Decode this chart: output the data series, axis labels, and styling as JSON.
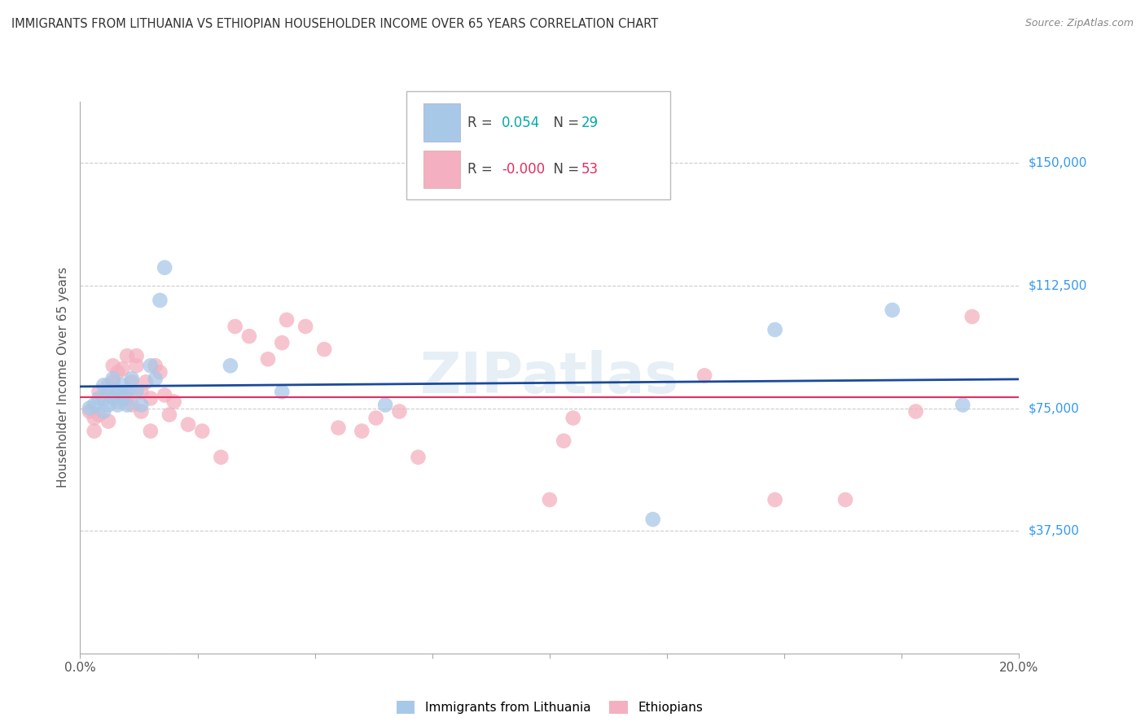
{
  "title": "IMMIGRANTS FROM LITHUANIA VS ETHIOPIAN HOUSEHOLDER INCOME OVER 65 YEARS CORRELATION CHART",
  "source": "Source: ZipAtlas.com",
  "ylabel": "Householder Income Over 65 years",
  "xlim": [
    0.0,
    0.2
  ],
  "ylim": [
    0,
    168750
  ],
  "yticks": [
    0,
    37500,
    75000,
    112500,
    150000
  ],
  "ytick_labels": [
    "",
    "$37,500",
    "$75,000",
    "$112,500",
    "$150,000"
  ],
  "xticks": [
    0.0,
    0.025,
    0.05,
    0.075,
    0.1,
    0.125,
    0.15,
    0.175,
    0.2
  ],
  "legend_R_blue": "0.054",
  "legend_N_blue": "29",
  "legend_R_pink": "-0.000",
  "legend_N_pink": "53",
  "blue_color": "#a8c8e8",
  "pink_color": "#f4b0c0",
  "blue_line_color": "#1a4a9a",
  "pink_line_color": "#e03060",
  "grid_color": "#cccccc",
  "title_color": "#333333",
  "axis_label_color": "#555555",
  "tick_label_color_right": "#3399ee",
  "watermark": "ZIPatlas",
  "blue_x": [
    0.002,
    0.003,
    0.004,
    0.005,
    0.005,
    0.006,
    0.006,
    0.007,
    0.007,
    0.008,
    0.008,
    0.009,
    0.009,
    0.01,
    0.01,
    0.011,
    0.012,
    0.013,
    0.015,
    0.016,
    0.017,
    0.018,
    0.032,
    0.043,
    0.065,
    0.122,
    0.148,
    0.173,
    0.188
  ],
  "blue_y": [
    75000,
    76000,
    78000,
    74000,
    82000,
    80000,
    76000,
    84000,
    78000,
    80000,
    76000,
    82000,
    78000,
    80000,
    76000,
    84000,
    80000,
    76000,
    88000,
    84000,
    108000,
    118000,
    88000,
    80000,
    76000,
    41000,
    99000,
    105000,
    76000
  ],
  "pink_x": [
    0.002,
    0.003,
    0.003,
    0.004,
    0.004,
    0.005,
    0.006,
    0.006,
    0.007,
    0.007,
    0.008,
    0.008,
    0.009,
    0.009,
    0.01,
    0.01,
    0.011,
    0.011,
    0.012,
    0.012,
    0.013,
    0.013,
    0.014,
    0.015,
    0.015,
    0.016,
    0.017,
    0.018,
    0.019,
    0.02,
    0.023,
    0.026,
    0.03,
    0.033,
    0.036,
    0.04,
    0.043,
    0.044,
    0.048,
    0.052,
    0.055,
    0.06,
    0.063,
    0.068,
    0.072,
    0.1,
    0.103,
    0.105,
    0.133,
    0.148,
    0.163,
    0.178,
    0.19
  ],
  "pink_y": [
    74000,
    72000,
    68000,
    80000,
    73000,
    78000,
    82000,
    71000,
    88000,
    83000,
    77000,
    86000,
    80000,
    87000,
    91000,
    78000,
    83000,
    76000,
    88000,
    91000,
    80000,
    74000,
    83000,
    68000,
    78000,
    88000,
    86000,
    79000,
    73000,
    77000,
    70000,
    68000,
    60000,
    100000,
    97000,
    90000,
    95000,
    102000,
    100000,
    93000,
    69000,
    68000,
    72000,
    74000,
    60000,
    47000,
    65000,
    72000,
    85000,
    47000,
    47000,
    74000,
    103000
  ]
}
